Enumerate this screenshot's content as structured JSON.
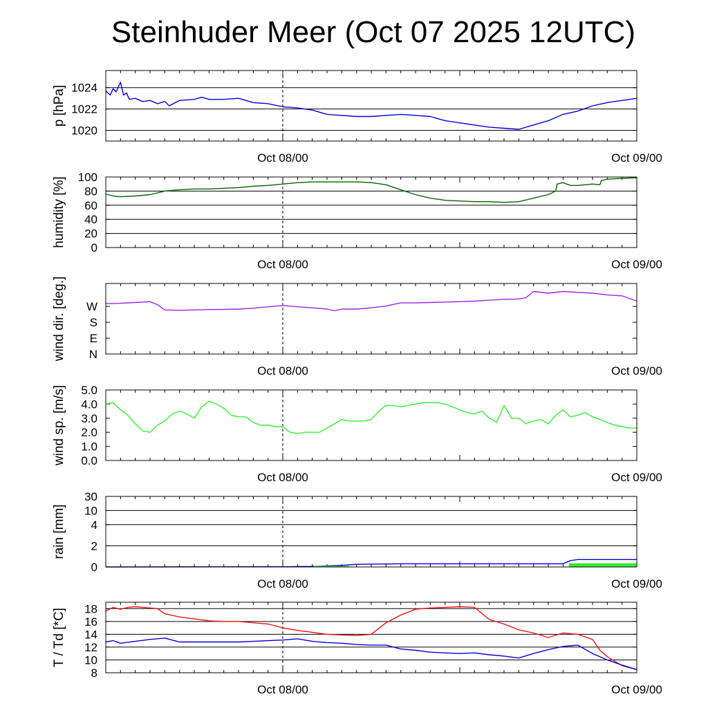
{
  "title": "Steinhuder Meer (Oct 07 2025 12UTC)",
  "colors": {
    "pressure": "#0000dd",
    "humidity": "#006400",
    "wind_dir": "#a020f0",
    "wind_speed": "#33ee33",
    "rain_total": "#0000dd",
    "rain_bars": "#33ee33",
    "temperature": "#ee1111",
    "dewpoint": "#0000dd"
  },
  "chart_data": [
    {
      "id": "pressure",
      "type": "line",
      "ylabel": "p [hPa]",
      "ylim": [
        1019.0,
        1025.6
      ],
      "yticks": [
        1020,
        1022,
        1024
      ],
      "ytick_labels": [
        "1020",
        "1022",
        "1024"
      ],
      "grid": true,
      "x_tick_labels": [
        "Oct 08/00",
        "Oct 09/00"
      ],
      "x_hours": [
        12,
        36
      ],
      "x_range_hours": [
        0,
        36
      ],
      "series": [
        {
          "name": "pressure",
          "color_key": "pressure",
          "x": [
            0,
            0.3,
            0.5,
            0.7,
            1.0,
            1.2,
            1.4,
            1.6,
            2,
            2.5,
            3,
            3.5,
            4,
            4.3,
            5,
            6,
            6.5,
            7,
            8,
            9,
            10,
            11,
            12,
            13,
            14,
            15,
            16,
            17,
            18,
            19,
            20,
            21,
            22,
            23,
            24,
            25,
            26,
            27,
            28,
            29,
            30,
            31,
            32,
            33,
            34,
            35,
            36
          ],
          "y": [
            1023.7,
            1023.3,
            1023.9,
            1023.6,
            1024.5,
            1023.3,
            1023.5,
            1022.9,
            1023.0,
            1022.7,
            1022.8,
            1022.5,
            1022.7,
            1022.3,
            1022.8,
            1022.9,
            1023.1,
            1022.9,
            1022.9,
            1023.0,
            1022.6,
            1022.5,
            1022.2,
            1022.1,
            1021.9,
            1021.5,
            1021.4,
            1021.3,
            1021.3,
            1021.4,
            1021.5,
            1021.4,
            1021.3,
            1020.9,
            1020.7,
            1020.5,
            1020.3,
            1020.2,
            1020.1,
            1020.5,
            1020.9,
            1021.5,
            1021.8,
            1022.3,
            1022.6,
            1022.8,
            1023.0
          ]
        }
      ]
    },
    {
      "id": "humidity",
      "type": "line",
      "ylabel": "humidity [%]",
      "ylim": [
        0,
        100
      ],
      "yticks": [
        0,
        20,
        40,
        60,
        80,
        100
      ],
      "ytick_labels": [
        "0",
        "20",
        "40",
        "60",
        "80",
        "100"
      ],
      "grid": true,
      "x_tick_labels": [
        "Oct 08/00",
        "Oct 09/00"
      ],
      "x_hours": [
        12,
        36
      ],
      "x_range_hours": [
        0,
        36
      ],
      "series": [
        {
          "name": "humidity",
          "color_key": "humidity",
          "x": [
            0,
            0.5,
            1,
            2,
            3,
            4,
            5,
            6,
            7,
            8,
            9,
            10,
            11,
            12,
            13,
            14,
            15,
            16,
            17,
            18,
            19,
            20,
            21,
            22,
            23,
            24,
            25,
            26,
            27,
            28,
            29,
            30,
            30.5,
            30.6,
            31,
            31.5,
            32,
            32.5,
            33,
            33.5,
            33.6,
            34,
            35,
            36
          ],
          "y": [
            76,
            73,
            72,
            73,
            75,
            80,
            82,
            83,
            83,
            84,
            85,
            87,
            88,
            90,
            92,
            93,
            93,
            93,
            93,
            92,
            89,
            82,
            75,
            70,
            67,
            66,
            65,
            65,
            64,
            65,
            70,
            75,
            80,
            90,
            92,
            88,
            88,
            89,
            90,
            89,
            95,
            97,
            98,
            99
          ]
        }
      ]
    },
    {
      "id": "wind_direction",
      "type": "line",
      "ylabel": "wind dir. [deg.]",
      "ylim": [
        0,
        400
      ],
      "yticks": [
        0,
        90,
        180,
        270
      ],
      "ytick_labels": [
        "N",
        "E",
        "S",
        "W"
      ],
      "grid": false,
      "x_tick_labels": [
        "Oct 08/00",
        "Oct 09/00"
      ],
      "x_hours": [
        12,
        36
      ],
      "x_range_hours": [
        0,
        36
      ],
      "series": [
        {
          "name": "wind direction",
          "color_key": "wind_dir",
          "x": [
            0,
            1,
            2,
            3,
            3.5,
            4,
            5,
            6,
            7,
            8,
            9,
            10,
            11,
            12,
            13,
            14,
            15,
            15.5,
            16,
            17,
            18,
            19,
            20,
            21,
            22,
            23,
            24,
            25,
            26,
            27,
            28,
            28.5,
            29,
            30,
            31,
            32,
            33,
            34,
            35,
            36
          ],
          "y": [
            285,
            288,
            292,
            297,
            280,
            250,
            248,
            250,
            252,
            253,
            255,
            260,
            268,
            275,
            268,
            262,
            255,
            245,
            255,
            255,
            262,
            272,
            290,
            290,
            292,
            295,
            297,
            300,
            305,
            310,
            312,
            320,
            355,
            345,
            355,
            350,
            345,
            335,
            330,
            300
          ]
        }
      ]
    },
    {
      "id": "wind_speed",
      "type": "line",
      "ylabel": "wind sp. [m/s]",
      "ylim": [
        0,
        5.0
      ],
      "yticks": [
        0.0,
        1.0,
        2.0,
        3.0,
        4.0,
        5.0
      ],
      "ytick_labels": [
        "0.0",
        "1.0",
        "2.0",
        "3.0",
        "4.0",
        "5.0"
      ],
      "grid": false,
      "x_tick_labels": [
        "Oct 08/00",
        "Oct 09/00"
      ],
      "x_hours": [
        12,
        36
      ],
      "x_range_hours": [
        0,
        36
      ],
      "series": [
        {
          "name": "wind speed",
          "color_key": "wind_sp",
          "x": [
            0,
            0.5,
            1,
            1.5,
            2,
            2.5,
            3,
            3.5,
            4,
            4.5,
            5,
            5.5,
            6,
            6.5,
            7,
            7.5,
            8,
            8.5,
            9,
            9.5,
            10,
            10.5,
            11,
            11.5,
            12,
            12.5,
            13,
            13.5,
            14,
            14.5,
            15,
            15.5,
            16,
            16.5,
            17,
            17.5,
            18,
            18.5,
            19,
            19.5,
            20,
            20.5,
            21,
            21.5,
            22,
            22.5,
            23,
            23.5,
            24,
            24.5,
            25,
            25.5,
            26,
            26.5,
            27,
            27.5,
            28,
            28.5,
            29,
            29.5,
            30,
            30.5,
            31,
            31.5,
            32,
            32.5,
            33,
            33.5,
            34,
            34.5,
            35,
            35.5,
            36
          ],
          "y": [
            4.0,
            4.1,
            3.6,
            3.2,
            2.6,
            2.1,
            2.0,
            2.5,
            2.8,
            3.3,
            3.5,
            3.3,
            3.0,
            3.8,
            4.2,
            4.0,
            3.7,
            3.2,
            3.1,
            3.1,
            2.7,
            2.5,
            2.5,
            2.4,
            2.4,
            2.0,
            1.9,
            2.0,
            2.0,
            2.0,
            2.3,
            2.6,
            2.9,
            2.8,
            2.8,
            2.8,
            2.9,
            3.5,
            3.9,
            3.9,
            3.8,
            3.9,
            4.0,
            4.1,
            4.1,
            4.1,
            4.0,
            3.8,
            3.6,
            3.4,
            3.3,
            3.5,
            3.0,
            2.7,
            3.9,
            3.0,
            3.0,
            2.6,
            2.8,
            2.9,
            2.6,
            3.2,
            3.6,
            3.1,
            3.2,
            3.4,
            3.1,
            2.9,
            2.7,
            2.5,
            2.4,
            2.3,
            2.3
          ]
        }
      ]
    },
    {
      "id": "rain",
      "type": "area",
      "ylabel": "rain [mm]",
      "ylim": [
        0,
        30
      ],
      "y_scale": "nonlinear",
      "yticks": [
        0,
        2,
        4,
        10,
        30
      ],
      "ytick_labels": [
        "0",
        "2",
        "4",
        "10",
        "30"
      ],
      "grid": true,
      "x_tick_labels": [
        "Oct 08/00",
        "Oct 09/00"
      ],
      "x_hours": [
        12,
        36
      ],
      "x_range_hours": [
        0,
        36
      ],
      "series": [
        {
          "name": "accumulated rain",
          "color_key": "rain_total",
          "x": [
            0,
            12,
            14,
            16,
            17,
            20,
            30,
            31,
            31.5,
            32,
            36
          ],
          "y": [
            0,
            0.02,
            0.05,
            0.15,
            0.25,
            0.3,
            0.3,
            0.3,
            0.6,
            0.7,
            0.7
          ]
        },
        {
          "name": "rain intensity",
          "color_key": "rain_bars",
          "x": [
            0,
            14,
            14.1,
            16.5,
            16.6,
            31.3,
            31.4,
            36
          ],
          "y": [
            0,
            0,
            0.1,
            0.1,
            0,
            0,
            0.35,
            0.35
          ]
        }
      ]
    },
    {
      "id": "temperature",
      "type": "line",
      "ylabel": "T / Td [*C]",
      "ylim": [
        8,
        19
      ],
      "yticks": [
        8,
        10,
        12,
        14,
        16,
        18
      ],
      "ytick_labels": [
        "8",
        "10",
        "12",
        "14",
        "16",
        "18"
      ],
      "grid": true,
      "x_tick_labels": [
        "Oct 08/00",
        "Oct 09/00"
      ],
      "x_hours": [
        12,
        36
      ],
      "x_range_hours": [
        0,
        36
      ],
      "series": [
        {
          "name": "temperature",
          "color_key": "temperature",
          "x": [
            0,
            0.5,
            1,
            1.5,
            2,
            3,
            3.5,
            4,
            5,
            6,
            7,
            8,
            9,
            10,
            11,
            12,
            13,
            14,
            15,
            16,
            17,
            18,
            19,
            20,
            21,
            22,
            23,
            24,
            25,
            26,
            27,
            28,
            29,
            30,
            31,
            31.5,
            32,
            33,
            33.5,
            34,
            35,
            36
          ],
          "y": [
            17.6,
            18.2,
            17.9,
            18.2,
            18.3,
            18.1,
            18.0,
            17.2,
            16.7,
            16.4,
            16.1,
            16.0,
            16.0,
            15.8,
            15.6,
            15.0,
            14.6,
            14.3,
            14.0,
            13.9,
            13.8,
            14.0,
            15.8,
            17.0,
            17.9,
            18.1,
            18.2,
            18.3,
            18.2,
            16.3,
            15.6,
            14.7,
            14.2,
            13.5,
            14.2,
            14.1,
            14.0,
            13.2,
            11.5,
            10.5,
            9.1,
            8.5
          ]
        },
        {
          "name": "dewpoint",
          "color_key": "dewpoint",
          "x": [
            0,
            0.5,
            1,
            2,
            3,
            4,
            5,
            6,
            7,
            8,
            9,
            10,
            11,
            12,
            13,
            14,
            15,
            16,
            17,
            18,
            19,
            20,
            21,
            22,
            23,
            24,
            25,
            26,
            27,
            28,
            29,
            30,
            31,
            32,
            33,
            34,
            35,
            36
          ],
          "y": [
            12.8,
            13.0,
            12.6,
            12.9,
            13.2,
            13.4,
            12.8,
            12.8,
            12.8,
            12.8,
            12.8,
            12.9,
            13.0,
            13.1,
            13.3,
            12.9,
            12.7,
            12.6,
            12.4,
            12.3,
            12.3,
            11.7,
            11.5,
            11.2,
            11.1,
            11.0,
            11.1,
            10.8,
            10.6,
            10.3,
            11.0,
            11.6,
            12.1,
            12.3,
            11.0,
            10.0,
            9.2,
            8.5
          ]
        }
      ]
    }
  ]
}
